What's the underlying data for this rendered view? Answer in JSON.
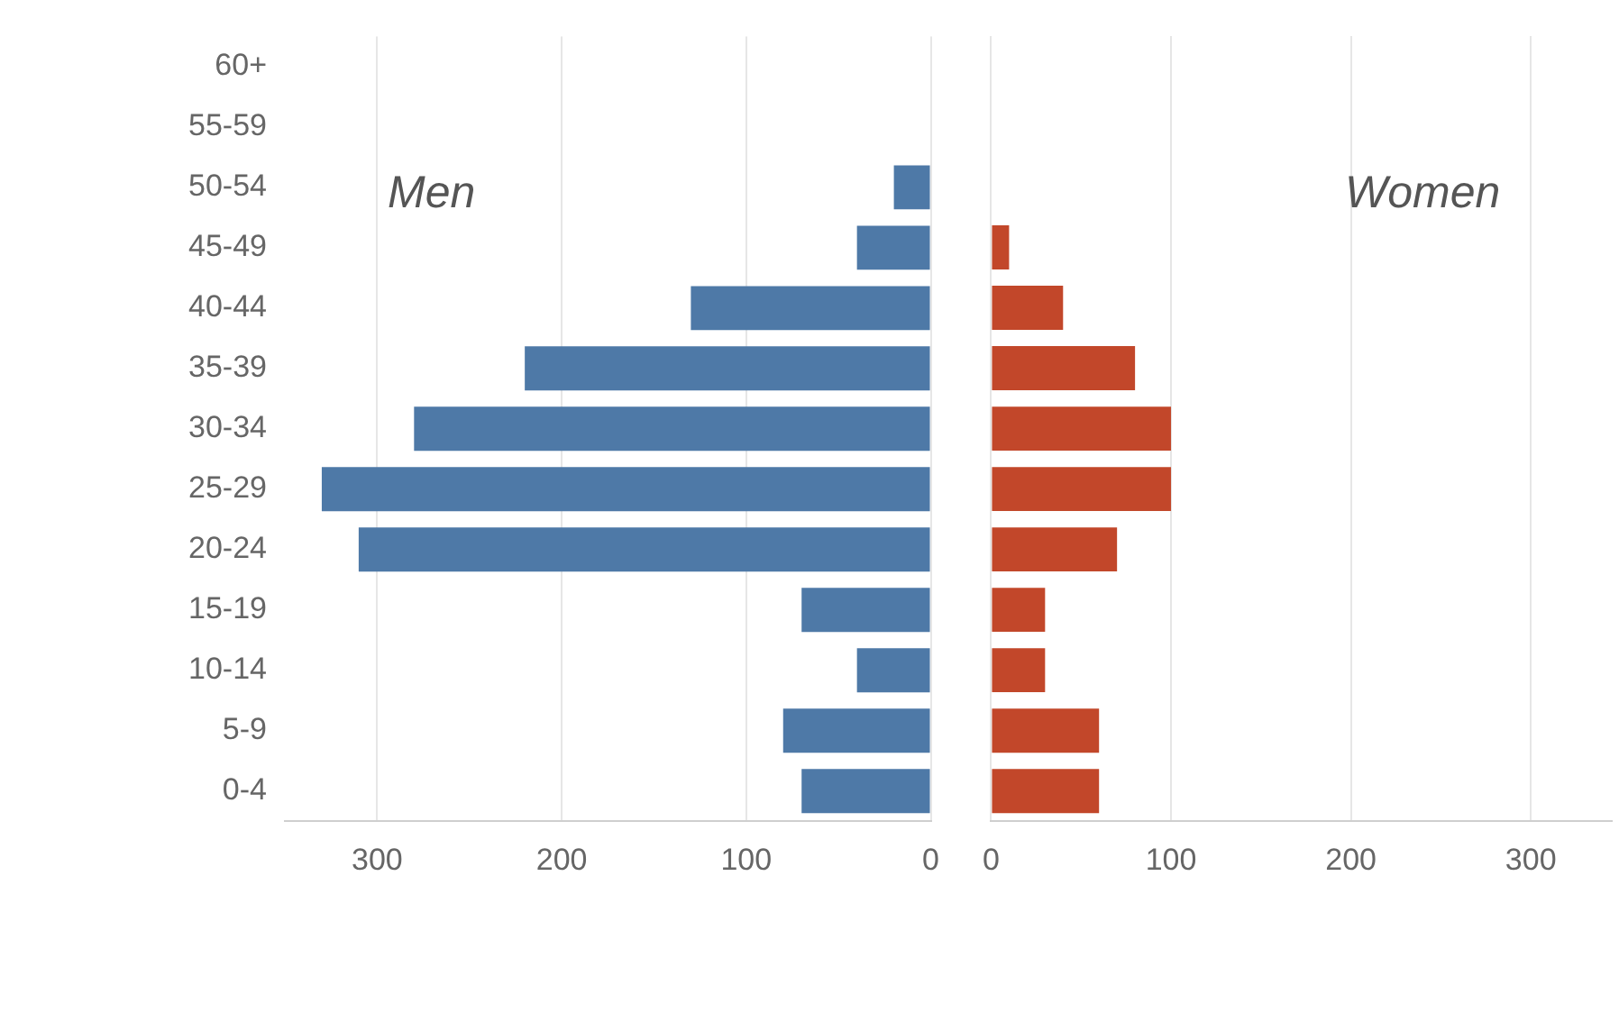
{
  "chart_data": [
    {
      "type": "bar",
      "orientation": "horizontal",
      "annotations": [
        "Men"
      ],
      "categories": [
        "60+",
        "55-59",
        "50-54",
        "45-49",
        "40-44",
        "35-39",
        "30-34",
        "25-29",
        "20-24",
        "15-19",
        "10-14",
        "5-9",
        "0-4"
      ],
      "series": [
        {
          "color": "#4e79a7",
          "values": [
            null,
            null,
            20,
            40,
            130,
            220,
            280,
            330,
            310,
            70,
            40,
            80,
            70
          ]
        }
      ],
      "xlim": [
        350,
        0
      ],
      "xticks": [
        300,
        200,
        100,
        0
      ],
      "grid": "x",
      "legend": false
    },
    {
      "type": "bar",
      "orientation": "horizontal",
      "annotations": [
        "Women"
      ],
      "categories": [
        null,
        null,
        null,
        null,
        null,
        null,
        null,
        null,
        null,
        null,
        null,
        null,
        null
      ],
      "series": [
        {
          "color": "#c2472a",
          "values": [
            null,
            null,
            null,
            10,
            40,
            80,
            100,
            100,
            70,
            30,
            30,
            60,
            60
          ]
        }
      ],
      "xlim": [
        0,
        345
      ],
      "xticks": [
        0,
        100,
        200,
        300
      ],
      "grid": "x",
      "legend": false,
      "tick_labels": "x"
    }
  ]
}
